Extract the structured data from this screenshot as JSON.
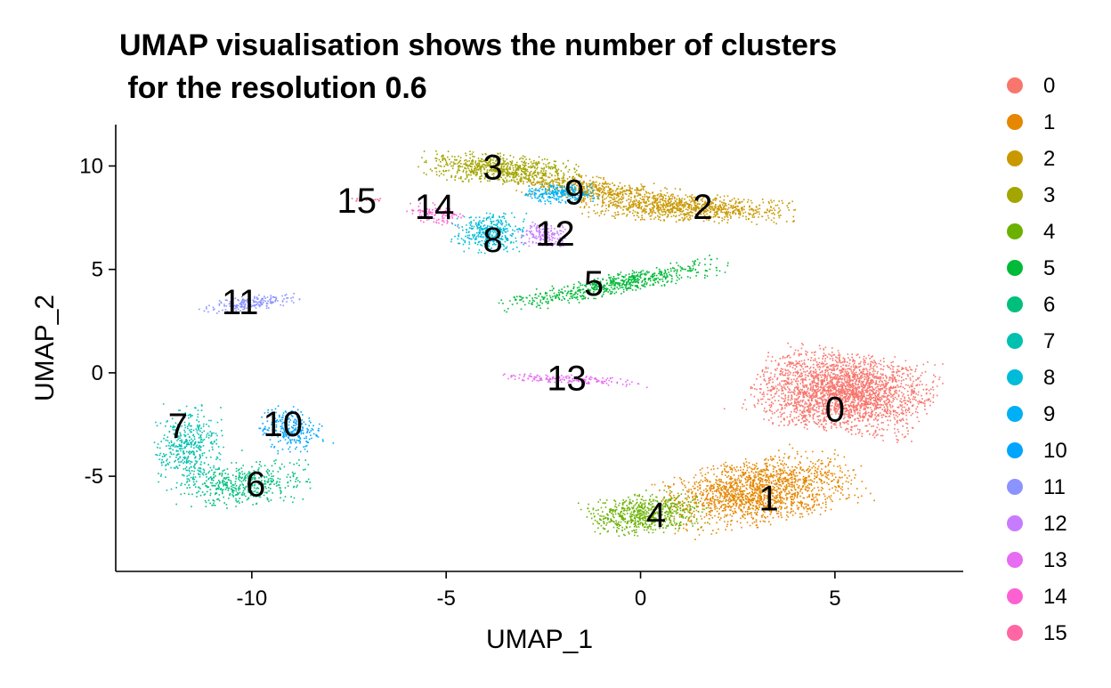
{
  "chart_data": {
    "type": "scatter",
    "title_line1": "UMAP visualisation shows the number of clusters",
    "title_line2": " for the resolution 0.6",
    "xlabel": "UMAP_1",
    "ylabel": "UMAP_2",
    "xlim": [
      -13.5,
      8.3
    ],
    "ylim": [
      -9.6,
      12.0
    ],
    "x_ticks": [
      {
        "value": -10,
        "label": "-10"
      },
      {
        "value": -5,
        "label": "-5"
      },
      {
        "value": 0,
        "label": "0"
      },
      {
        "value": 5,
        "label": "5"
      }
    ],
    "y_ticks": [
      {
        "value": 10,
        "label": "10"
      },
      {
        "value": 5,
        "label": "5"
      },
      {
        "value": 0,
        "label": "0"
      },
      {
        "value": -5,
        "label": "-5"
      }
    ],
    "grid": false,
    "legend_placement": "right",
    "clusters": [
      {
        "name": "0",
        "color": "#F8766D",
        "label_x": 5.0,
        "label_y": -1.9
      },
      {
        "name": "1",
        "color": "#E58700",
        "label_x": 3.3,
        "label_y": -6.2
      },
      {
        "name": "2",
        "color": "#C99800",
        "label_x": 1.6,
        "label_y": 7.9
      },
      {
        "name": "3",
        "color": "#A3A500",
        "label_x": -3.8,
        "label_y": 9.8
      },
      {
        "name": "4",
        "color": "#6BB100",
        "label_x": 0.4,
        "label_y": -7.0
      },
      {
        "name": "5",
        "color": "#00BA38",
        "label_x": -1.2,
        "label_y": 4.2
      },
      {
        "name": "6",
        "color": "#00BF7D",
        "label_x": -9.9,
        "label_y": -5.5
      },
      {
        "name": "7",
        "color": "#00C0AF",
        "label_x": -11.9,
        "label_y": -2.7
      },
      {
        "name": "8",
        "color": "#00BCD8",
        "label_x": -3.8,
        "label_y": 6.3
      },
      {
        "name": "9",
        "color": "#00B0F6",
        "label_x": -1.7,
        "label_y": 8.6
      },
      {
        "name": "10",
        "color": "#619CFF",
        "label_x": -9.2,
        "label_y": -2.6
      },
      {
        "name": "11",
        "color": "#B983FF",
        "label_x": -10.3,
        "label_y": 3.3
      },
      {
        "name": "12",
        "color": "#E76BF3",
        "label_x": -2.2,
        "label_y": 6.6
      },
      {
        "name": "13",
        "color": "#FD61D1",
        "label_x": -1.9,
        "label_y": -0.4
      },
      {
        "name": "14",
        "color": "#FF67A4",
        "label_x": -5.3,
        "label_y": 7.9
      },
      {
        "name": "15",
        "color": "#FF6C91",
        "label_x": -7.3,
        "label_y": 8.2
      }
    ],
    "cluster_colors_actual": [
      "#F8766D",
      "#E58700",
      "#C99800",
      "#A3A500",
      "#6BB100",
      "#00BA38",
      "#00BF7D",
      "#00C0AF",
      "#00BCD8",
      "#00B0F6",
      "#00A5FF",
      "#8B93FF",
      "#C77CFF",
      "#E76BF3",
      "#FD61D1",
      "#FF67A4"
    ],
    "cluster_names_actual": [
      "0",
      "1",
      "2",
      "3",
      "4",
      "5",
      "6",
      "7",
      "8",
      "9",
      "10",
      "11",
      "12",
      "13",
      "14",
      "15"
    ]
  }
}
